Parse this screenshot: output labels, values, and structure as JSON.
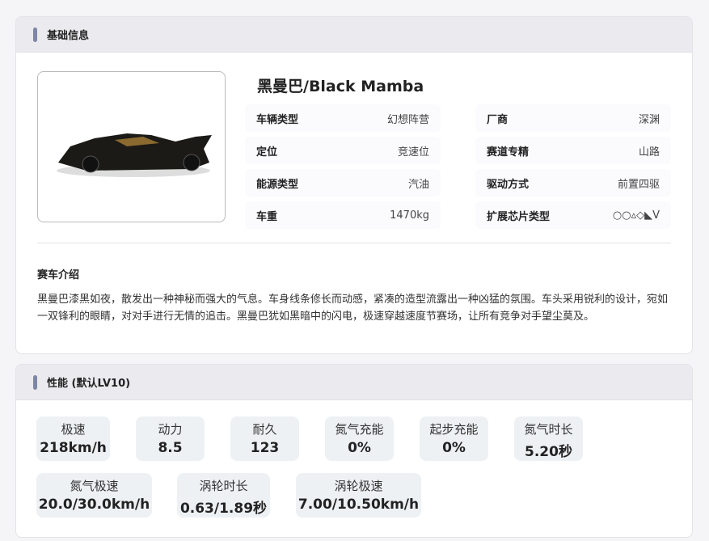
{
  "basic": {
    "title": "基础信息",
    "car_name": "黑曼巴/Black Mamba",
    "attrs": [
      {
        "key": "车辆类型",
        "value": "幻想阵营"
      },
      {
        "key": "厂商",
        "value": "深渊"
      },
      {
        "key": "定位",
        "value": "竞速位"
      },
      {
        "key": "赛道专精",
        "value": "山路"
      },
      {
        "key": "能源类型",
        "value": "汽油"
      },
      {
        "key": "驱动方式",
        "value": "前置四驱"
      },
      {
        "key": "车重",
        "value": "1470kg"
      },
      {
        "key": "扩展芯片类型",
        "value": "○○▵◇◣V"
      }
    ],
    "intro_title": "赛车介绍",
    "intro": "黑曼巴漆黑如夜，散发出一种神秘而强大的气息。车身线条修长而动感，紧凑的造型流露出一种凶猛的氛围。车头采用锐利的设计，宛如一双锋利的眼睛，对对手进行无情的追击。黑曼巴犹如黑暗中的闪电，极速穿越速度节赛场，让所有竞争对手望尘莫及。"
  },
  "performance": {
    "title": "性能 (默认LV10)",
    "stats": [
      {
        "label": "极速",
        "value": "218km/h"
      },
      {
        "label": "动力",
        "value": "8.5"
      },
      {
        "label": "耐久",
        "value": "123"
      },
      {
        "label": "氮气充能",
        "value": "0%"
      },
      {
        "label": "起步充能",
        "value": "0%"
      },
      {
        "label": "氮气时长",
        "value": "5.20秒"
      },
      {
        "label": "氮气极速",
        "value": "20.0/30.0km/h"
      },
      {
        "label": "涡轮时长",
        "value": "0.63/1.89秒"
      },
      {
        "label": "涡轮极速",
        "value": "7.00/10.50km/h"
      }
    ]
  }
}
